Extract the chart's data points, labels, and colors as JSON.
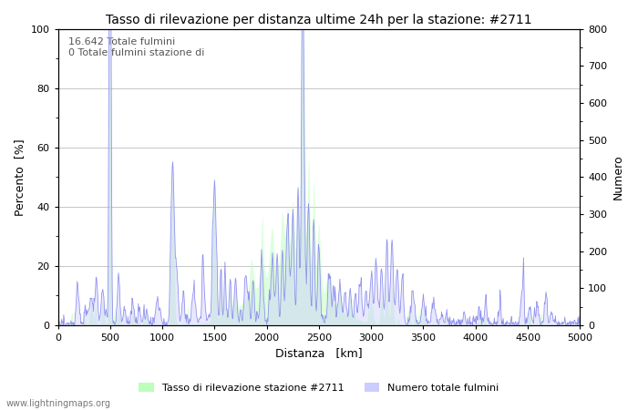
{
  "title": "Tasso di rilevazione per distanza ultime 24h per la stazione: #2711",
  "xlabel": "Distanza   [km]",
  "ylabel_left": "Percento  [%]",
  "ylabel_right": "Numero",
  "annotation_line1": "16.642 Totale fulmini",
  "annotation_line2": "0 Totale fulmini stazione di",
  "xlim": [
    0,
    5000
  ],
  "ylim_left": [
    0,
    100
  ],
  "ylim_right": [
    0,
    800
  ],
  "xticks": [
    0,
    500,
    1000,
    1500,
    2000,
    2500,
    3000,
    3500,
    4000,
    4500,
    5000
  ],
  "yticks_left": [
    0,
    20,
    40,
    60,
    80,
    100
  ],
  "yticks_right": [
    0,
    100,
    200,
    300,
    400,
    500,
    600,
    700,
    800
  ],
  "legend_label_green": "Tasso di rilevazione stazione #2711",
  "legend_label_blue": "Numero totale fulmini",
  "watermark": "www.lightningmaps.org",
  "line_color": "#8888ee",
  "fill_color_green": "#bbffbb",
  "fill_color_blue": "#ccccff",
  "bg_color": "#ffffff",
  "grid_color": "#bbbbbb"
}
